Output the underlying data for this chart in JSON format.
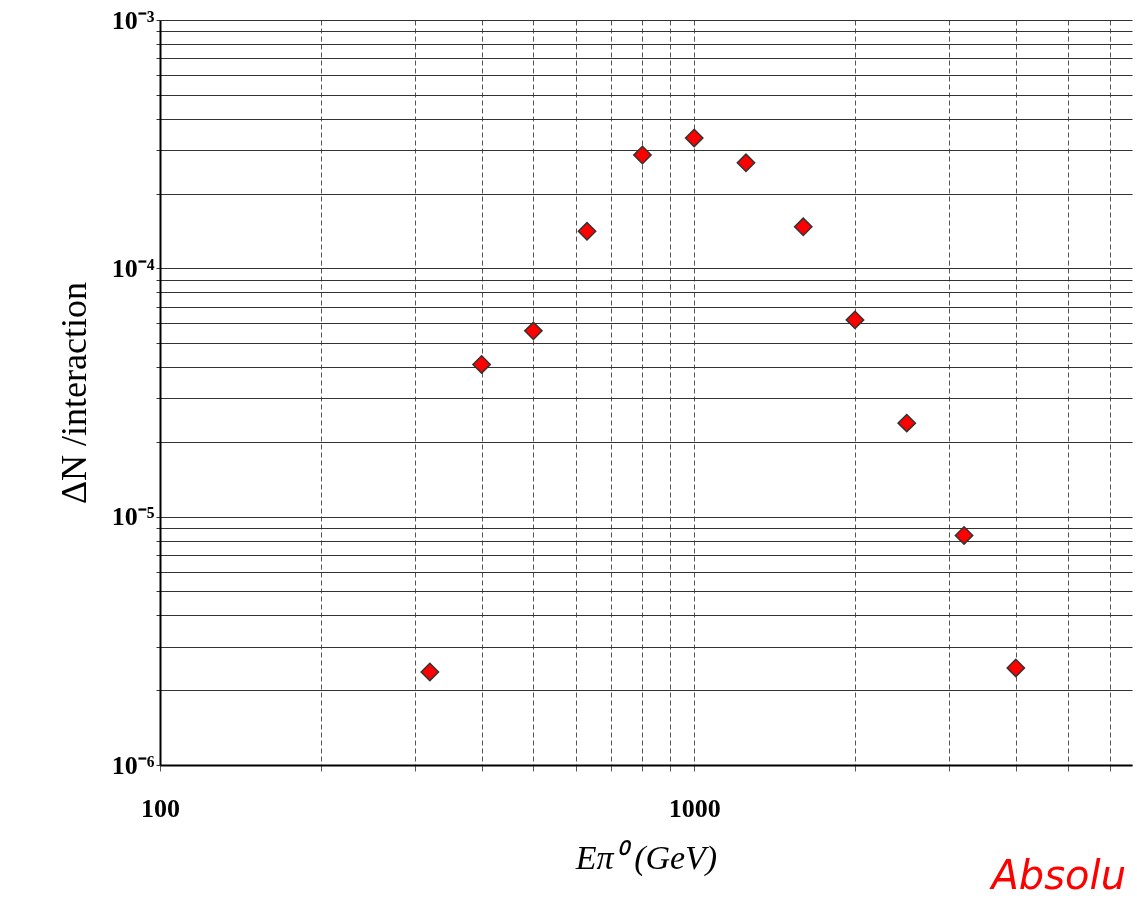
{
  "chart_data": {
    "type": "scatter",
    "xlabel": "Eπ⁰ (GeV)",
    "ylabel": "ΔN /interaction",
    "x": [
      320,
      400,
      500,
      630,
      800,
      1000,
      1250,
      1600,
      2000,
      2500,
      3200,
      4000
    ],
    "series": [
      {
        "color": "#ff0000",
        "values": [
          2.37e-06,
          4.1e-05,
          5.6e-05,
          0.000141,
          0.000286,
          0.000335,
          0.000266,
          0.000147,
          6.2e-05,
          2.38e-05,
          8.4e-06,
          2.46e-06
        ]
      }
    ],
    "log": "xy",
    "grid": true,
    "marker": "diamond",
    "xlim": [
      100,
      6600
    ],
    "xticks": [
      100,
      {
        "value": 200,
        "label": null
      },
      {
        "value": 300,
        "label": null
      },
      {
        "value": 400,
        "label": null
      },
      {
        "value": 500,
        "label": null
      },
      {
        "value": 600,
        "label": null
      },
      {
        "value": 700,
        "label": null
      },
      {
        "value": 800,
        "label": null
      },
      {
        "value": 900,
        "label": null
      },
      1000,
      {
        "value": 2000,
        "label": null
      },
      {
        "value": 3000,
        "label": null
      },
      {
        "value": 4000,
        "label": null
      },
      {
        "value": 5000,
        "label": null
      },
      {
        "value": 6000,
        "label": null
      }
    ],
    "ylim": [
      1e-06,
      0.001
    ],
    "yticks": [
      {
        "value": 1e-06,
        "label": "10⁻⁶"
      },
      {
        "value": 2e-06,
        "label": null
      },
      {
        "value": 3e-06,
        "label": null
      },
      {
        "value": 4e-06,
        "label": null
      },
      {
        "value": 5e-06,
        "label": null
      },
      {
        "value": 6e-06,
        "label": null
      },
      {
        "value": 7e-06,
        "label": null
      },
      {
        "value": 8e-06,
        "label": null
      },
      {
        "value": 9e-06,
        "label": null
      },
      {
        "value": 1e-05,
        "label": "10⁻⁵"
      },
      {
        "value": 2e-05,
        "label": null
      },
      {
        "value": 3e-05,
        "label": null
      },
      {
        "value": 4e-05,
        "label": null
      },
      {
        "value": 5e-05,
        "label": null
      },
      {
        "value": 6e-05,
        "label": null
      },
      {
        "value": 7e-05,
        "label": null
      },
      {
        "value": 8e-05,
        "label": null
      },
      {
        "value": 9e-05,
        "label": null
      },
      {
        "value": 0.0001,
        "label": "10⁻⁴"
      },
      {
        "value": 0.0002,
        "label": null
      },
      {
        "value": 0.0003,
        "label": null
      },
      {
        "value": 0.0004,
        "label": null
      },
      {
        "value": 0.0005,
        "label": null
      },
      {
        "value": 0.0006,
        "label": null
      },
      {
        "value": 0.0007,
        "label": null
      },
      {
        "value": 0.0008,
        "label": null
      },
      {
        "value": 0.0009,
        "label": null
      },
      {
        "value": 0.001,
        "label": "10⁻³"
      }
    ],
    "annotations": [
      "Absolu"
    ]
  }
}
